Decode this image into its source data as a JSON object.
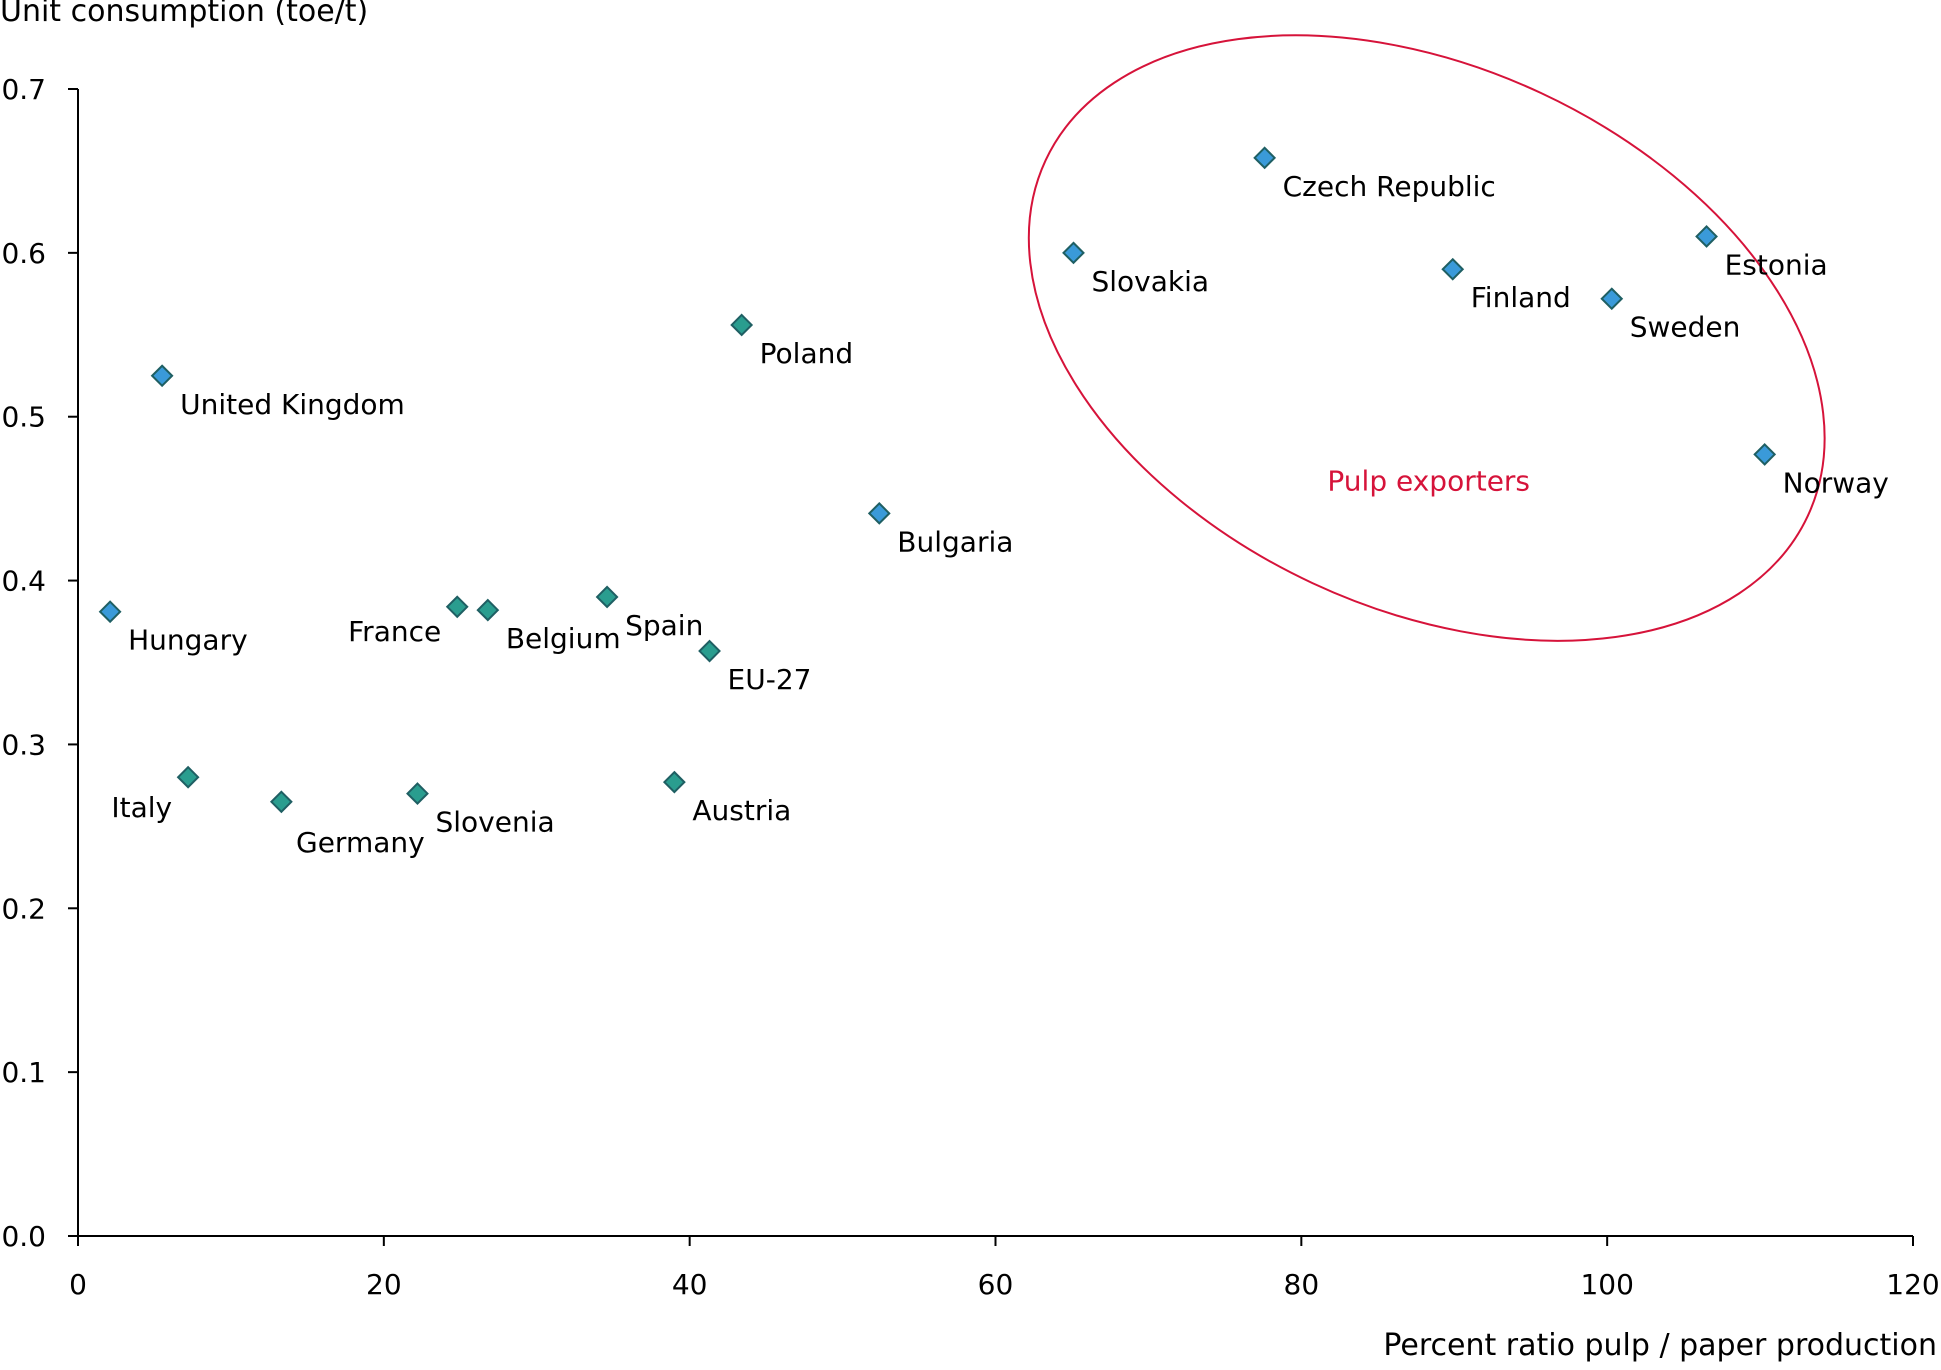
{
  "chart_data": {
    "type": "scatter",
    "ylabel": "Unit consumption (toe/t)",
    "xlabel": "Percent ratio pulp / paper production",
    "xlim": [
      0,
      120
    ],
    "ylim": [
      0.0,
      0.7
    ],
    "x_ticks": [
      "0",
      "20",
      "40",
      "60",
      "80",
      "100",
      "120"
    ],
    "y_ticks": [
      "0.0",
      "0.1",
      "0.2",
      "0.3",
      "0.4",
      "0.5",
      "0.6",
      "0.7"
    ],
    "grid": false,
    "series": [
      {
        "marker_color": "#3a9ad9",
        "points": [
          {
            "label": "United Kingdom",
            "x": 5.5,
            "y": 0.525
          },
          {
            "label": "Hungary",
            "x": 2.1,
            "y": 0.381
          },
          {
            "label": "Bulgaria",
            "x": 52.4,
            "y": 0.441
          },
          {
            "label": "Slovakia",
            "x": 65.1,
            "y": 0.6
          },
          {
            "label": "Czech Republic",
            "x": 77.6,
            "y": 0.658
          },
          {
            "label": "Finland",
            "x": 89.9,
            "y": 0.59
          },
          {
            "label": "Sweden",
            "x": 100.3,
            "y": 0.572
          },
          {
            "label": "Estonia",
            "x": 106.5,
            "y": 0.61
          },
          {
            "label": "Norway",
            "x": 110.3,
            "y": 0.477
          }
        ]
      },
      {
        "marker_color": "#2a9d8f",
        "points": [
          {
            "label": "Poland",
            "x": 43.4,
            "y": 0.556
          },
          {
            "label": "Spain",
            "x": 34.6,
            "y": 0.39
          },
          {
            "label": "France",
            "x": 24.8,
            "y": 0.384
          },
          {
            "label": "Belgium",
            "x": 26.8,
            "y": 0.382
          },
          {
            "label": "EU-27",
            "x": 41.3,
            "y": 0.357
          },
          {
            "label": "Italy",
            "x": 7.2,
            "y": 0.28
          },
          {
            "label": "Germany",
            "x": 13.3,
            "y": 0.265
          },
          {
            "label": "Slovenia",
            "x": 22.2,
            "y": 0.27
          },
          {
            "label": "Austria",
            "x": 39.0,
            "y": 0.277
          }
        ]
      }
    ],
    "annotations": [
      {
        "text": "Pulp exporters",
        "color": "#d6133a",
        "shape": "ellipse",
        "cx": 88.2,
        "cy": 0.548,
        "rx": 27.5,
        "ry": 0.165
      }
    ]
  }
}
